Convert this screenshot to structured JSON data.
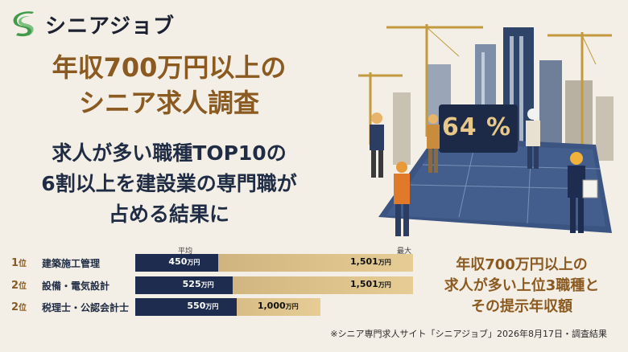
{
  "brand": {
    "name": "シニアジョブ",
    "logo_icon": "s-leaf-logo-icon",
    "colors": {
      "green": "#3f9a4a",
      "navy": "#1e2d4f",
      "gold": "#8a5a20"
    }
  },
  "headline": {
    "line1": "年収700万円以上の",
    "line2": "シニア求人調査"
  },
  "subhead": {
    "line1": "求人が多い職種TOP10の",
    "line2": "6割以上を建設業の専門職が",
    "line3": "占める結果に"
  },
  "illustration": {
    "percent_badge": "64 %"
  },
  "ranking": {
    "col_avg": "平均",
    "col_max": "最大",
    "rank_unit": "位",
    "salary_unit": "万円",
    "rows": [
      {
        "rank": "1",
        "title": "建築施工管理",
        "avg": 450,
        "max": 1501,
        "avg_text": "450",
        "max_text": "1,501"
      },
      {
        "rank": "2",
        "title": "設備・電気設計",
        "avg": 525,
        "max": 1501,
        "avg_text": "525",
        "max_text": "1,501"
      },
      {
        "rank": "2",
        "title": "税理士・公認会計士",
        "avg": 550,
        "max": 1000,
        "avg_text": "550",
        "max_text": "1,000"
      }
    ]
  },
  "side_note": {
    "line1": "年収700万円以上の",
    "line2": "求人が多い上位3職種と",
    "line3": "その提示年収額"
  },
  "footnote": "※シニア専門求人サイト「シニアジョブ」2026年8月17日・調査結果"
}
